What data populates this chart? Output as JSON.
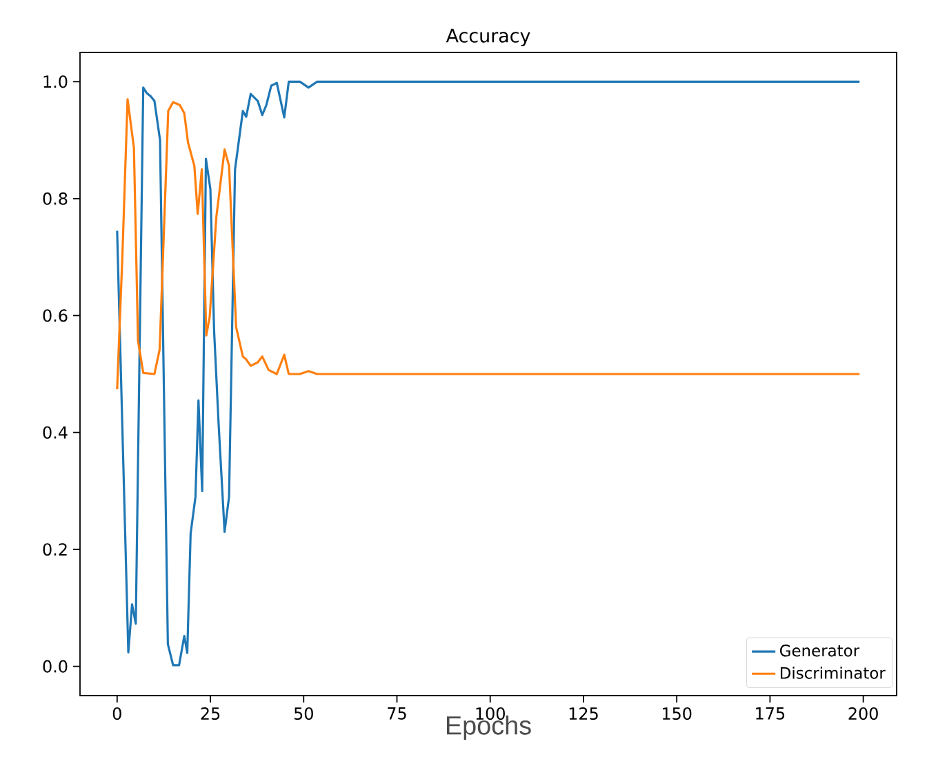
{
  "chart_data": {
    "type": "line",
    "title": "Accuracy",
    "xlabel": "Epochs",
    "series": [
      {
        "name": "Generator",
        "color": "#1f77b4",
        "x": [
          0,
          3,
          4,
          5,
          7,
          8,
          9,
          10,
          11.5,
          13.6,
          15,
          16.6,
          18,
          18.8,
          19.7,
          21,
          21.8,
          22.8,
          23.8,
          25,
          26,
          27.2,
          28.8,
          30,
          31.6,
          33.7,
          34.6,
          35.8,
          37.7,
          38.9,
          40,
          41.3,
          42.8,
          44.8,
          46,
          49,
          51.3,
          53.6,
          199
        ],
        "values": [
          0.745,
          0.024,
          0.106,
          0.073,
          0.99,
          0.98,
          0.975,
          0.967,
          0.9,
          0.038,
          0.002,
          0.002,
          0.052,
          0.023,
          0.227,
          0.29,
          0.455,
          0.3,
          0.868,
          0.816,
          0.573,
          0.415,
          0.23,
          0.29,
          0.85,
          0.95,
          0.94,
          0.979,
          0.967,
          0.943,
          0.96,
          0.993,
          0.998,
          0.939,
          1.0,
          1.0,
          0.99,
          1.0,
          1.0
        ]
      },
      {
        "name": "Discriminator",
        "color": "#ff7f0e",
        "x": [
          0,
          1.4,
          2.8,
          4.5,
          5.6,
          7,
          10,
          11.4,
          13.7,
          15,
          16.8,
          18,
          19,
          20.7,
          21.6,
          22.7,
          23.9,
          24.8,
          26.6,
          28.8,
          30,
          31.9,
          33.7,
          34.6,
          35.8,
          37.7,
          38.9,
          40.6,
          42.8,
          44.8,
          46,
          49,
          51.3,
          53.6,
          199
        ],
        "values": [
          0.474,
          0.7,
          0.97,
          0.887,
          0.557,
          0.502,
          0.5,
          0.542,
          0.95,
          0.965,
          0.96,
          0.946,
          0.896,
          0.856,
          0.774,
          0.85,
          0.566,
          0.597,
          0.769,
          0.884,
          0.856,
          0.58,
          0.53,
          0.525,
          0.514,
          0.52,
          0.53,
          0.507,
          0.5,
          0.533,
          0.5,
          0.5,
          0.505,
          0.5,
          0.5
        ]
      }
    ],
    "xlim": [
      -9.95,
      208.95
    ],
    "ylim": [
      -0.05,
      1.05
    ],
    "xticks": [
      0,
      25,
      50,
      75,
      100,
      125,
      150,
      175,
      200
    ],
    "yticks": [
      {
        "value": 0,
        "label": "0.0"
      },
      {
        "value": 0.2,
        "label": "0.2"
      },
      {
        "value": 0.4,
        "label": "0.4"
      },
      {
        "value": 0.6,
        "label": "0.6"
      },
      {
        "value": 0.8,
        "label": "0.8"
      },
      {
        "value": 1.0,
        "label": "1.0"
      }
    ],
    "legend": "bottom right",
    "grid": false,
    "marker": "none",
    "line_style": "solid"
  }
}
